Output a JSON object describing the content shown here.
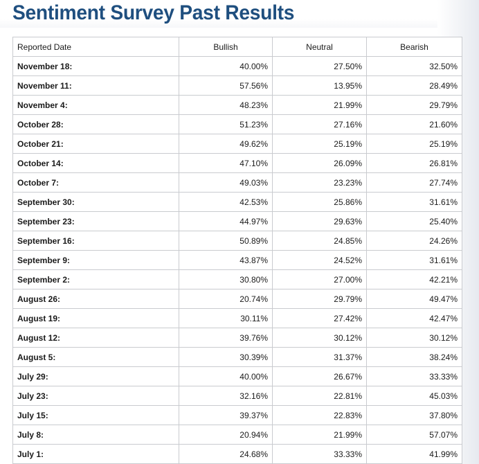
{
  "page": {
    "title": "Sentiment Survey Past Results"
  },
  "table": {
    "headers": [
      "Reported Date",
      "Bullish",
      "Neutral",
      "Bearish"
    ],
    "rows": [
      {
        "date": "November 18:",
        "bullish": "40.00%",
        "neutral": "27.50%",
        "bearish": "32.50%"
      },
      {
        "date": "November 11:",
        "bullish": "57.56%",
        "neutral": "13.95%",
        "bearish": "28.49%"
      },
      {
        "date": "November 4:",
        "bullish": "48.23%",
        "neutral": "21.99%",
        "bearish": "29.79%"
      },
      {
        "date": "October 28:",
        "bullish": "51.23%",
        "neutral": "27.16%",
        "bearish": "21.60%"
      },
      {
        "date": "October 21:",
        "bullish": "49.62%",
        "neutral": "25.19%",
        "bearish": "25.19%"
      },
      {
        "date": "October 14:",
        "bullish": "47.10%",
        "neutral": "26.09%",
        "bearish": "26.81%"
      },
      {
        "date": "October 7:",
        "bullish": "49.03%",
        "neutral": "23.23%",
        "bearish": "27.74%"
      },
      {
        "date": "September 30:",
        "bullish": "42.53%",
        "neutral": "25.86%",
        "bearish": "31.61%"
      },
      {
        "date": "September 23:",
        "bullish": "44.97%",
        "neutral": "29.63%",
        "bearish": "25.40%"
      },
      {
        "date": "September 16:",
        "bullish": "50.89%",
        "neutral": "24.85%",
        "bearish": "24.26%"
      },
      {
        "date": "September 9:",
        "bullish": "43.87%",
        "neutral": "24.52%",
        "bearish": "31.61%"
      },
      {
        "date": "September 2:",
        "bullish": "30.80%",
        "neutral": "27.00%",
        "bearish": "42.21%"
      },
      {
        "date": "August 26:",
        "bullish": "20.74%",
        "neutral": "29.79%",
        "bearish": "49.47%"
      },
      {
        "date": "August 19:",
        "bullish": "30.11%",
        "neutral": "27.42%",
        "bearish": "42.47%"
      },
      {
        "date": "August 12:",
        "bullish": "39.76%",
        "neutral": "30.12%",
        "bearish": "30.12%"
      },
      {
        "date": "August 5:",
        "bullish": "30.39%",
        "neutral": "31.37%",
        "bearish": "38.24%"
      },
      {
        "date": "July 29:",
        "bullish": "40.00%",
        "neutral": "26.67%",
        "bearish": "33.33%"
      },
      {
        "date": "July 23:",
        "bullish": "32.16%",
        "neutral": "22.81%",
        "bearish": "45.03%"
      },
      {
        "date": "July 15:",
        "bullish": "39.37%",
        "neutral": "22.83%",
        "bearish": "37.80%"
      },
      {
        "date": "July 8:",
        "bullish": "20.94%",
        "neutral": "21.99%",
        "bearish": "57.07%"
      },
      {
        "date": "July 1:",
        "bullish": "24.68%",
        "neutral": "33.33%",
        "bearish": "41.99%"
      }
    ]
  }
}
